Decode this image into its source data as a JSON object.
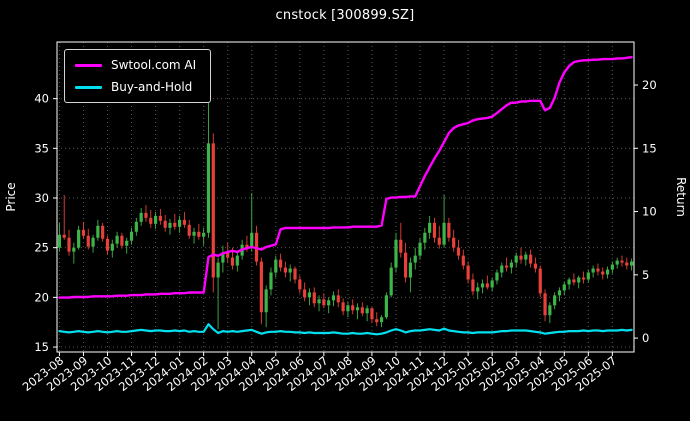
{
  "title": "cnstock [300899.SZ]",
  "legend": {
    "items": [
      {
        "label": "Swtool.com AI",
        "color": "#ff00ff"
      },
      {
        "label": "Buy-and-Hold",
        "color": "#00e0ee"
      }
    ]
  },
  "chart_data": {
    "type": "candlestick+line",
    "title": "cnstock [300899.SZ]",
    "ylabel_left": "Price",
    "ylabel_right": "Return",
    "background": "#000000",
    "text_color": "#ffffff",
    "grid": true,
    "grid_color": "#555555",
    "legend_position": "upper left",
    "price_ylim": [
      14.5,
      45.7
    ],
    "return_ylim": [
      -1.1,
      23.4
    ],
    "price_ticks": [
      15,
      20,
      25,
      30,
      35,
      40
    ],
    "return_ticks": [
      0,
      5,
      10,
      15,
      20
    ],
    "x_tick_labels": [
      "2023-08",
      "2023-09",
      "2023-10",
      "2023-11",
      "2023-12",
      "2024-01",
      "2024-02",
      "2024-03",
      "2024-04",
      "2024-05",
      "2024-06",
      "2024-07",
      "2024-08",
      "2024-09",
      "2024-10",
      "2024-11",
      "2024-12",
      "2025-01",
      "2025-02",
      "2025-03",
      "2025-04",
      "2025-05",
      "2025-06",
      "2025-07"
    ],
    "candles_per_month": 5,
    "candle_colors": {
      "up": "#3db54a",
      "down": "#e8403a"
    },
    "candles_ohlc": [
      [
        25.0,
        27.5,
        24.6,
        26.3
      ],
      [
        26.3,
        30.3,
        25.8,
        26.0
      ],
      [
        26.0,
        26.8,
        24.2,
        24.6
      ],
      [
        24.6,
        25.5,
        23.4,
        25.0
      ],
      [
        25.0,
        27.2,
        24.8,
        26.8
      ],
      [
        26.8,
        27.6,
        25.9,
        26.2
      ],
      [
        26.2,
        26.9,
        24.8,
        25.1
      ],
      [
        25.1,
        26.3,
        24.5,
        26.0
      ],
      [
        26.0,
        27.8,
        25.7,
        27.2
      ],
      [
        27.2,
        27.5,
        25.6,
        25.9
      ],
      [
        25.9,
        26.2,
        24.3,
        24.7
      ],
      [
        24.7,
        25.8,
        24.0,
        25.4
      ],
      [
        25.4,
        26.6,
        25.0,
        26.2
      ],
      [
        26.2,
        26.5,
        24.9,
        25.2
      ],
      [
        25.2,
        26.0,
        24.4,
        25.7
      ],
      [
        25.7,
        27.0,
        25.3,
        26.6
      ],
      [
        26.6,
        28.0,
        26.2,
        27.6
      ],
      [
        27.6,
        29.0,
        27.2,
        28.5
      ],
      [
        28.5,
        29.3,
        27.6,
        28.0
      ],
      [
        28.0,
        28.8,
        27.0,
        27.4
      ],
      [
        27.4,
        28.6,
        26.9,
        28.2
      ],
      [
        28.2,
        28.9,
        27.3,
        27.7
      ],
      [
        27.7,
        28.3,
        26.6,
        27.0
      ],
      [
        27.0,
        27.9,
        26.3,
        27.5
      ],
      [
        27.5,
        28.4,
        26.8,
        27.1
      ],
      [
        27.1,
        28.2,
        26.5,
        27.8
      ],
      [
        27.8,
        28.6,
        27.0,
        27.3
      ],
      [
        27.3,
        27.8,
        25.9,
        26.2
      ],
      [
        26.2,
        27.0,
        25.4,
        26.6
      ],
      [
        26.6,
        27.4,
        25.8,
        26.1
      ],
      [
        26.1,
        27.0,
        25.2,
        26.5
      ],
      [
        26.5,
        43.8,
        26.0,
        35.5
      ],
      [
        35.5,
        36.5,
        20.5,
        22.0
      ],
      [
        22.0,
        24.0,
        16.8,
        23.5
      ],
      [
        23.5,
        25.2,
        22.5,
        24.5
      ],
      [
        24.5,
        25.5,
        23.5,
        24.0
      ],
      [
        24.0,
        25.0,
        22.8,
        23.2
      ],
      [
        23.2,
        24.6,
        22.6,
        24.2
      ],
      [
        24.2,
        25.8,
        23.8,
        25.3
      ],
      [
        25.3,
        26.2,
        24.6,
        25.0
      ],
      [
        25.0,
        30.5,
        24.6,
        26.5
      ],
      [
        26.5,
        27.2,
        23.2,
        23.6
      ],
      [
        23.6,
        24.0,
        17.3,
        18.5
      ],
      [
        18.5,
        21.2,
        17.0,
        20.8
      ],
      [
        20.8,
        23.0,
        20.2,
        22.5
      ],
      [
        22.5,
        24.2,
        22.0,
        23.8
      ],
      [
        23.8,
        24.4,
        22.6,
        23.0
      ],
      [
        23.0,
        23.6,
        22.0,
        22.5
      ],
      [
        22.5,
        23.3,
        21.6,
        22.9
      ],
      [
        22.9,
        23.1,
        21.4,
        21.8
      ],
      [
        21.8,
        22.2,
        20.4,
        20.8
      ],
      [
        20.8,
        21.5,
        19.6,
        20.0
      ],
      [
        20.0,
        20.9,
        19.2,
        20.5
      ],
      [
        20.5,
        21.0,
        19.0,
        19.4
      ],
      [
        19.4,
        20.2,
        18.6,
        19.8
      ],
      [
        19.8,
        20.4,
        18.9,
        19.2
      ],
      [
        19.2,
        20.0,
        18.4,
        19.7
      ],
      [
        19.7,
        20.6,
        19.1,
        20.2
      ],
      [
        20.2,
        20.8,
        19.0,
        19.5
      ],
      [
        19.5,
        19.9,
        18.2,
        18.6
      ],
      [
        18.6,
        19.6,
        18.0,
        19.2
      ],
      [
        19.2,
        19.8,
        18.3,
        18.7
      ],
      [
        18.7,
        19.4,
        17.8,
        19.0
      ],
      [
        19.0,
        19.5,
        18.1,
        18.4
      ],
      [
        18.4,
        19.2,
        17.6,
        18.9
      ],
      [
        18.9,
        19.0,
        17.4,
        17.8
      ],
      [
        17.8,
        18.5,
        17.1,
        17.5
      ],
      [
        17.5,
        18.2,
        17.0,
        18.0
      ],
      [
        18.0,
        20.5,
        17.8,
        20.2
      ],
      [
        20.2,
        23.5,
        20.0,
        23.0
      ],
      [
        23.0,
        26.5,
        22.5,
        25.8
      ],
      [
        25.8,
        27.5,
        24.0,
        24.5
      ],
      [
        24.5,
        25.5,
        21.5,
        22.0
      ],
      [
        22.0,
        24.0,
        20.5,
        23.5
      ],
      [
        23.5,
        25.0,
        22.8,
        24.2
      ],
      [
        24.2,
        26.0,
        23.8,
        25.5
      ],
      [
        25.5,
        27.0,
        24.8,
        26.5
      ],
      [
        26.5,
        28.2,
        25.9,
        27.5
      ],
      [
        27.5,
        28.0,
        25.5,
        26.0
      ],
      [
        26.0,
        27.2,
        24.9,
        25.3
      ],
      [
        25.3,
        30.3,
        25.0,
        27.5
      ],
      [
        27.5,
        28.0,
        25.6,
        26.0
      ],
      [
        26.0,
        26.8,
        24.6,
        25.0
      ],
      [
        25.0,
        25.8,
        23.8,
        24.2
      ],
      [
        24.2,
        24.8,
        22.8,
        23.2
      ],
      [
        23.2,
        23.6,
        21.4,
        21.8
      ],
      [
        21.8,
        22.4,
        20.2,
        20.6
      ],
      [
        20.6,
        21.5,
        19.8,
        21.0
      ],
      [
        21.0,
        21.8,
        20.4,
        21.4
      ],
      [
        21.4,
        22.2,
        20.8,
        21.0
      ],
      [
        21.0,
        22.0,
        20.6,
        21.7
      ],
      [
        21.7,
        22.8,
        21.3,
        22.5
      ],
      [
        22.5,
        23.5,
        22.0,
        23.2
      ],
      [
        23.2,
        24.0,
        22.6,
        23.0
      ],
      [
        23.0,
        23.8,
        22.4,
        23.5
      ],
      [
        23.5,
        24.5,
        23.0,
        24.2
      ],
      [
        24.2,
        25.0,
        23.4,
        23.8
      ],
      [
        23.8,
        24.6,
        23.2,
        24.3
      ],
      [
        24.3,
        24.8,
        23.0,
        23.4
      ],
      [
        23.4,
        24.0,
        22.5,
        22.9
      ],
      [
        22.9,
        23.2,
        20.0,
        20.4
      ],
      [
        20.4,
        20.8,
        17.6,
        18.2
      ],
      [
        18.2,
        19.5,
        17.4,
        19.2
      ],
      [
        19.2,
        20.5,
        18.8,
        20.2
      ],
      [
        20.2,
        21.0,
        19.6,
        20.7
      ],
      [
        20.7,
        21.6,
        20.2,
        21.3
      ],
      [
        21.3,
        22.0,
        20.8,
        21.8
      ],
      [
        21.8,
        22.4,
        21.2,
        21.5
      ],
      [
        21.5,
        22.2,
        20.9,
        22.0
      ],
      [
        22.0,
        22.6,
        21.4,
        21.8
      ],
      [
        21.8,
        22.8,
        21.5,
        22.5
      ],
      [
        22.5,
        23.2,
        22.0,
        22.9
      ],
      [
        22.9,
        23.4,
        22.2,
        22.6
      ],
      [
        22.6,
        23.0,
        21.8,
        22.3
      ],
      [
        22.3,
        23.1,
        21.9,
        22.8
      ],
      [
        22.8,
        23.6,
        22.4,
        23.3
      ],
      [
        23.3,
        24.0,
        22.9,
        23.7
      ],
      [
        23.7,
        24.2,
        23.1,
        23.5
      ],
      [
        23.5,
        24.0,
        22.8,
        23.2
      ],
      [
        23.2,
        23.9,
        22.7,
        23.6
      ]
    ],
    "series": [
      {
        "name": "Swtool.com AI",
        "axis": "return",
        "color": "#ff00ff",
        "width": 2.4,
        "values": [
          3.2,
          3.2,
          3.2,
          3.25,
          3.25,
          3.25,
          3.25,
          3.3,
          3.3,
          3.3,
          3.3,
          3.3,
          3.35,
          3.35,
          3.35,
          3.4,
          3.4,
          3.4,
          3.45,
          3.45,
          3.45,
          3.5,
          3.5,
          3.5,
          3.55,
          3.55,
          3.55,
          3.6,
          3.6,
          3.6,
          3.6,
          6.4,
          6.6,
          6.5,
          6.7,
          6.8,
          6.9,
          6.8,
          7.0,
          7.1,
          7.2,
          7.1,
          7.0,
          7.2,
          7.3,
          7.4,
          8.6,
          8.7,
          8.7,
          8.7,
          8.7,
          8.7,
          8.7,
          8.7,
          8.7,
          8.7,
          8.7,
          8.75,
          8.75,
          8.75,
          8.75,
          8.8,
          8.8,
          8.8,
          8.8,
          8.8,
          8.8,
          8.9,
          11.0,
          11.1,
          11.1,
          11.15,
          11.15,
          11.2,
          11.2,
          12.0,
          12.8,
          13.5,
          14.2,
          14.8,
          15.5,
          16.2,
          16.6,
          16.8,
          16.9,
          17.0,
          17.2,
          17.3,
          17.35,
          17.4,
          17.5,
          17.8,
          18.1,
          18.4,
          18.6,
          18.6,
          18.7,
          18.7,
          18.75,
          18.75,
          18.75,
          18.0,
          18.2,
          19.0,
          20.2,
          21.0,
          21.5,
          21.8,
          21.9,
          21.95,
          21.95,
          22.0,
          22.0,
          22.05,
          22.05,
          22.05,
          22.1,
          22.1,
          22.15,
          22.2
        ]
      },
      {
        "name": "Buy-and-Hold",
        "axis": "return",
        "color": "#00e0ee",
        "width": 2.2,
        "values": [
          0.55,
          0.5,
          0.45,
          0.5,
          0.55,
          0.5,
          0.45,
          0.5,
          0.55,
          0.5,
          0.45,
          0.5,
          0.55,
          0.5,
          0.5,
          0.55,
          0.6,
          0.65,
          0.6,
          0.55,
          0.6,
          0.6,
          0.55,
          0.55,
          0.6,
          0.55,
          0.6,
          0.5,
          0.55,
          0.5,
          0.5,
          1.1,
          0.7,
          0.4,
          0.55,
          0.5,
          0.55,
          0.5,
          0.55,
          0.6,
          0.65,
          0.5,
          0.35,
          0.45,
          0.5,
          0.5,
          0.55,
          0.5,
          0.5,
          0.45,
          0.45,
          0.4,
          0.45,
          0.4,
          0.4,
          0.4,
          0.4,
          0.45,
          0.4,
          0.35,
          0.35,
          0.4,
          0.35,
          0.35,
          0.4,
          0.35,
          0.3,
          0.35,
          0.45,
          0.6,
          0.7,
          0.6,
          0.45,
          0.55,
          0.6,
          0.6,
          0.65,
          0.7,
          0.65,
          0.6,
          0.75,
          0.6,
          0.55,
          0.5,
          0.45,
          0.45,
          0.4,
          0.45,
          0.45,
          0.45,
          0.45,
          0.5,
          0.55,
          0.55,
          0.6,
          0.6,
          0.6,
          0.6,
          0.55,
          0.5,
          0.45,
          0.35,
          0.4,
          0.45,
          0.5,
          0.5,
          0.55,
          0.55,
          0.55,
          0.6,
          0.55,
          0.6,
          0.6,
          0.55,
          0.6,
          0.6,
          0.6,
          0.65,
          0.6,
          0.65
        ]
      }
    ]
  }
}
